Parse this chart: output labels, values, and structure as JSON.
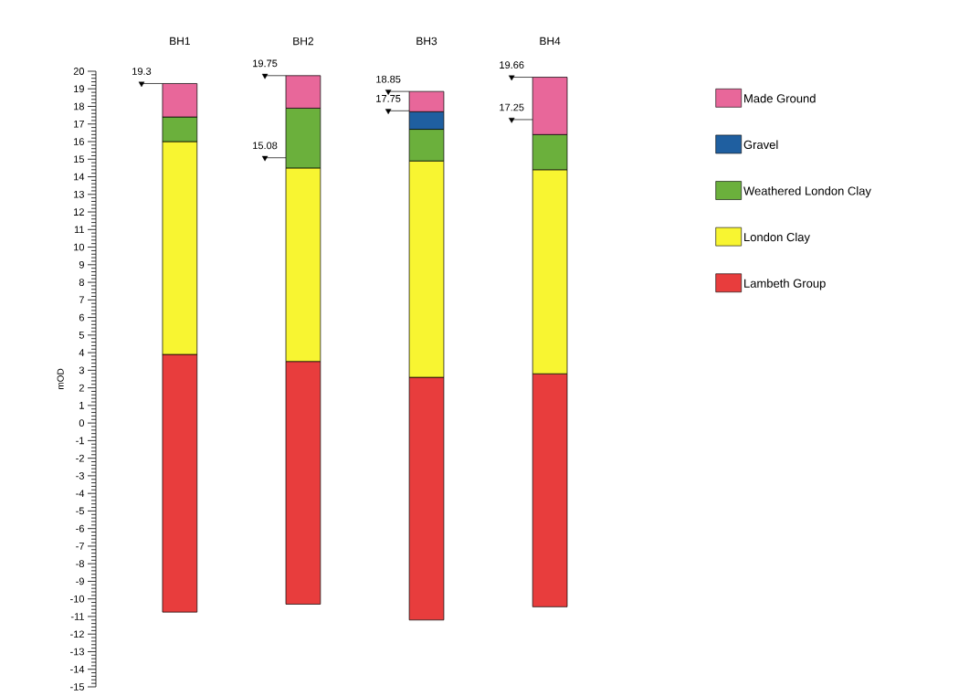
{
  "chart_data": {
    "type": "bar",
    "ylabel": "mOD",
    "categories": [
      "BH1",
      "BH2",
      "BH3",
      "BH4"
    ],
    "series": [
      {
        "name": "Lambeth Group",
        "color": "#e83d3d",
        "base": [
          -10.75,
          -10.3,
          -11.2,
          -10.45
        ],
        "values": [
          14.65,
          13.8,
          13.8,
          13.25
        ]
      },
      {
        "name": "London Clay",
        "color": "#f8f531",
        "base": [
          3.9,
          3.5,
          2.6,
          2.8
        ],
        "values": [
          12.1,
          11.0,
          12.3,
          11.6
        ]
      },
      {
        "name": "Weathered London Clay",
        "color": "#6bb03c",
        "base": [
          16.0,
          14.5,
          14.9,
          14.4
        ],
        "values": [
          1.4,
          3.4,
          1.8,
          2.0
        ]
      },
      {
        "name": "Gravel",
        "color": "#1f5fa0",
        "base": [
          null,
          null,
          16.7,
          null
        ],
        "values": [
          null,
          null,
          1.0,
          null
        ]
      },
      {
        "name": "Made Ground",
        "color": "#e8679a",
        "base": [
          17.4,
          17.9,
          17.7,
          16.4
        ],
        "values": [
          1.9,
          1.85,
          1.15,
          3.26
        ]
      },
      {
        "type": "scatter",
        "marker": "triangle",
        "color": "#000000",
        "x": [
          "BH1",
          "BH2",
          "BH3",
          "BH4"
        ],
        "values": [
          19.3,
          19.75,
          18.85,
          19.66
        ],
        "value_labels": [
          "19.3",
          "19.75",
          "18.85",
          "19.66"
        ]
      },
      {
        "type": "scatter",
        "marker": "triangle",
        "color": "#000000",
        "x": [
          "BH1",
          "BH2",
          "BH3",
          "BH4"
        ],
        "values": [
          null,
          15.08,
          17.75,
          17.25
        ],
        "value_labels": [
          null,
          "15.08",
          "17.75",
          "17.25"
        ]
      }
    ],
    "ylim": [
      -15,
      20
    ],
    "yticks": [
      -15,
      -14,
      -13,
      -12,
      -11,
      -10,
      -9,
      -8,
      -7,
      -6,
      -5,
      -4,
      -3,
      -2,
      -1,
      0,
      1,
      2,
      3,
      4,
      5,
      6,
      7,
      8,
      9,
      10,
      11,
      12,
      13,
      14,
      15,
      16,
      17,
      18,
      19,
      20
    ],
    "legend": "right"
  }
}
